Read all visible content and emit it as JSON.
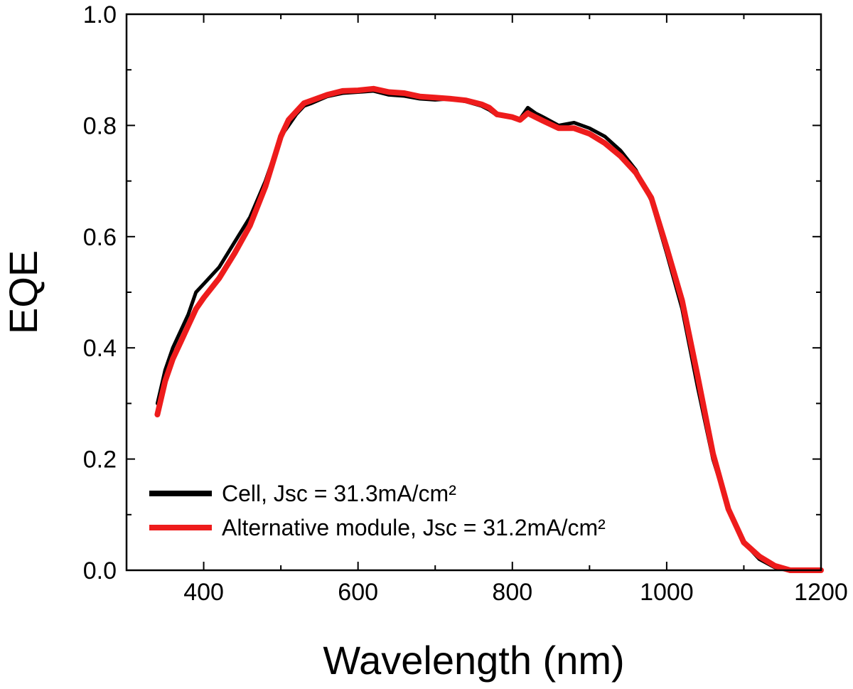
{
  "chart_data": {
    "type": "line",
    "title": "",
    "xlabel": "Wavelength (nm)",
    "ylabel": "EQE",
    "xlim": [
      300,
      1200
    ],
    "ylim": [
      0.0,
      1.0
    ],
    "xticks": [
      400,
      600,
      800,
      1000,
      1200
    ],
    "xtick_labels": [
      "400",
      "600",
      "800",
      "1000",
      "1200"
    ],
    "yticks": [
      0.0,
      0.2,
      0.4,
      0.6,
      0.8,
      1.0
    ],
    "ytick_labels": [
      "0.0",
      "0.2",
      "0.4",
      "0.6",
      "0.8",
      "1.0"
    ],
    "grid": false,
    "legend_position": "bottom-left",
    "series": [
      {
        "name": "Cell, Jsc = 31.3mA/cm²",
        "color": "#000000",
        "x": [
          340,
          350,
          360,
          370,
          380,
          390,
          400,
          420,
          440,
          460,
          480,
          500,
          510,
          520,
          530,
          540,
          560,
          580,
          600,
          620,
          640,
          660,
          680,
          700,
          720,
          740,
          760,
          770,
          780,
          800,
          810,
          820,
          830,
          840,
          860,
          880,
          900,
          920,
          940,
          960,
          980,
          1000,
          1020,
          1040,
          1060,
          1080,
          1100,
          1120,
          1140,
          1160,
          1180,
          1200
        ],
        "y": [
          0.3,
          0.36,
          0.4,
          0.43,
          0.46,
          0.5,
          0.515,
          0.545,
          0.59,
          0.635,
          0.7,
          0.78,
          0.8,
          0.82,
          0.835,
          0.84,
          0.852,
          0.858,
          0.86,
          0.862,
          0.855,
          0.853,
          0.848,
          0.846,
          0.848,
          0.843,
          0.835,
          0.828,
          0.818,
          0.815,
          0.812,
          0.832,
          0.822,
          0.815,
          0.8,
          0.805,
          0.795,
          0.78,
          0.755,
          0.72,
          0.665,
          0.57,
          0.47,
          0.33,
          0.2,
          0.11,
          0.05,
          0.02,
          0.005,
          0.0,
          0.0,
          0.0
        ]
      },
      {
        "name": "Alternative module, Jsc = 31.2mA/cm²",
        "color": "#ee1c1c",
        "x": [
          340,
          350,
          360,
          370,
          380,
          390,
          400,
          420,
          440,
          460,
          480,
          500,
          510,
          520,
          530,
          540,
          560,
          580,
          600,
          620,
          640,
          660,
          680,
          700,
          720,
          740,
          760,
          770,
          780,
          800,
          810,
          820,
          830,
          840,
          860,
          880,
          900,
          920,
          940,
          960,
          980,
          1000,
          1020,
          1040,
          1060,
          1080,
          1100,
          1120,
          1140,
          1160,
          1180,
          1200
        ],
        "y": [
          0.28,
          0.34,
          0.38,
          0.41,
          0.44,
          0.47,
          0.49,
          0.525,
          0.57,
          0.62,
          0.69,
          0.78,
          0.81,
          0.825,
          0.84,
          0.845,
          0.855,
          0.862,
          0.863,
          0.866,
          0.86,
          0.858,
          0.852,
          0.85,
          0.848,
          0.845,
          0.838,
          0.832,
          0.82,
          0.815,
          0.81,
          0.822,
          0.815,
          0.808,
          0.795,
          0.795,
          0.785,
          0.768,
          0.745,
          0.715,
          0.67,
          0.58,
          0.485,
          0.35,
          0.21,
          0.11,
          0.05,
          0.025,
          0.008,
          0.0,
          0.0,
          0.0
        ]
      }
    ]
  }
}
